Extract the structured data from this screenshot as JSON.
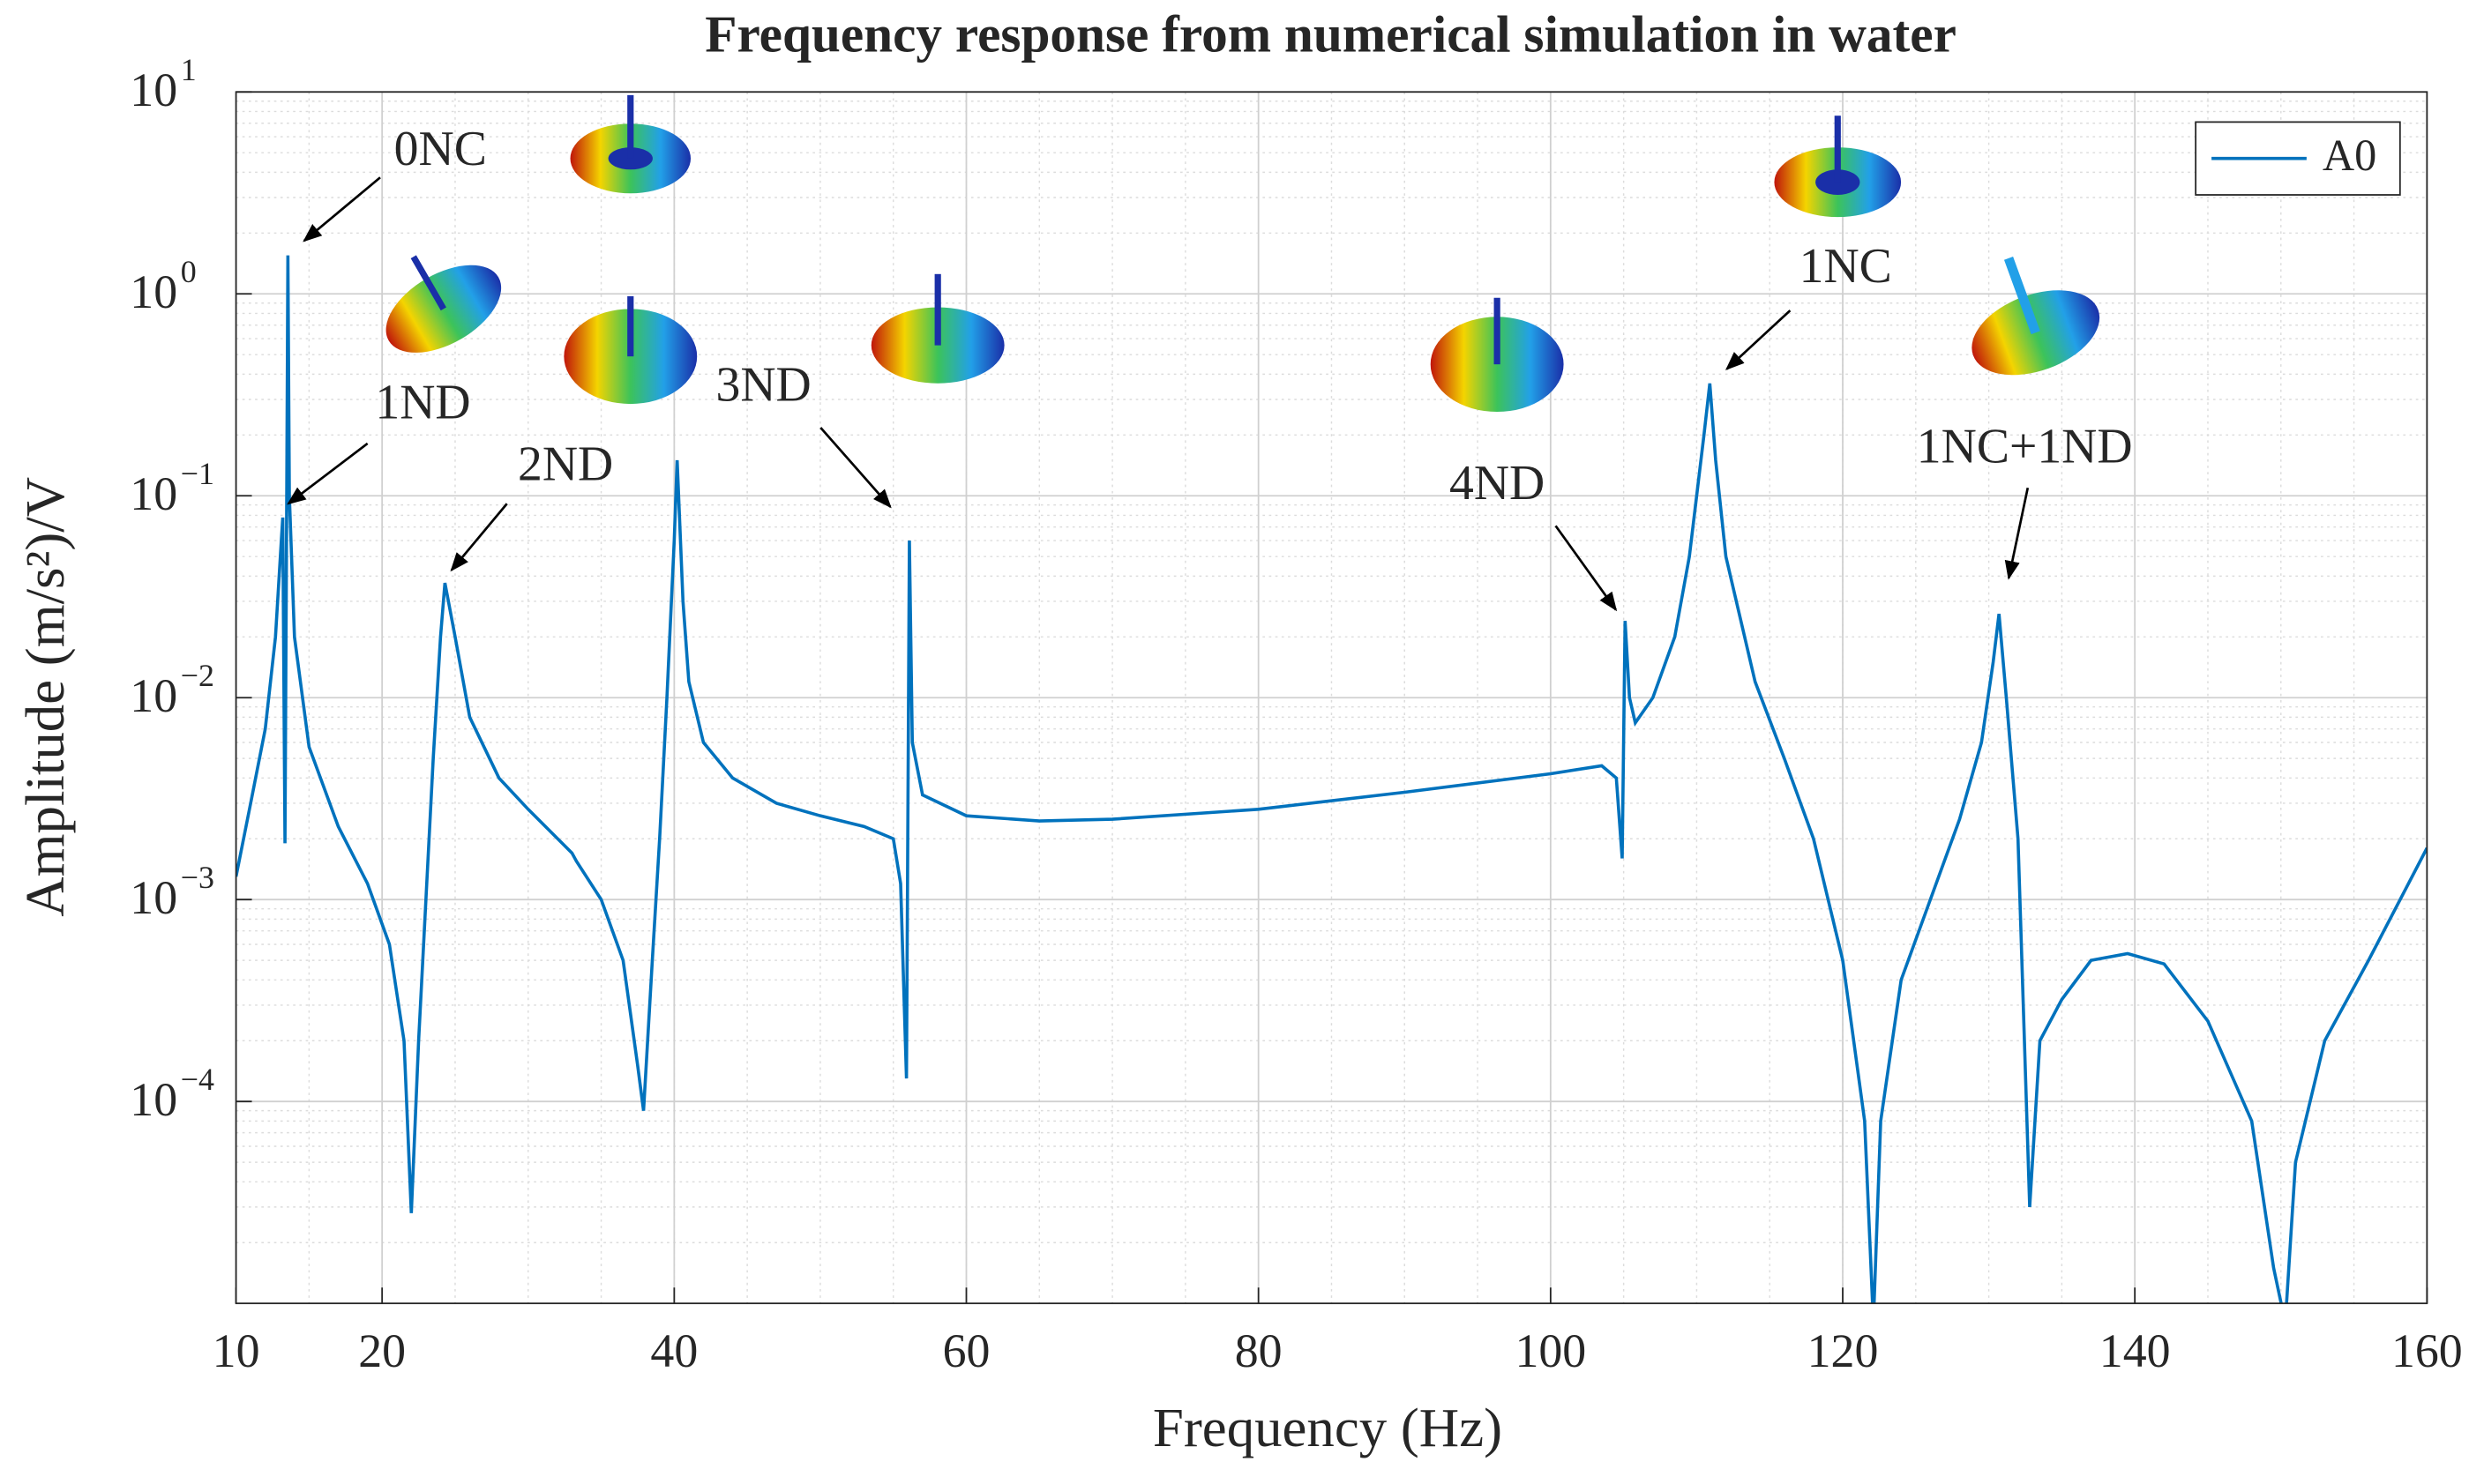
{
  "chart_data": {
    "type": "line",
    "title": "Frequency response from numerical simulation in water",
    "xlabel": "Frequency (Hz)",
    "ylabel": "Amplitude (m/s²)/V",
    "log_y": true,
    "grid": true,
    "minor_grid": true,
    "legend_position": "upper right",
    "xlim": [
      10,
      160
    ],
    "xticks": [
      10,
      20,
      40,
      60,
      80,
      100,
      120,
      140,
      160
    ],
    "ylim": [
      1e-05,
      10
    ],
    "yticks": [
      {
        "value": 10,
        "label": "10",
        "exponent": "1"
      },
      {
        "value": 1,
        "label": "10",
        "exponent": "0"
      },
      {
        "value": 0.1,
        "label": "10",
        "exponent": "−1"
      },
      {
        "value": 0.01,
        "label": "10",
        "exponent": "−2"
      },
      {
        "value": 0.001,
        "label": "10",
        "exponent": "−3"
      },
      {
        "value": 0.0001,
        "label": "10",
        "exponent": "−4"
      }
    ],
    "x": [
      10.0,
      11.0,
      12.0,
      12.7,
      13.1,
      13.2,
      13.35,
      13.45,
      13.55,
      13.65,
      14.0,
      15.0,
      17.0,
      19.0,
      20.5,
      21.5,
      22.0,
      22.5,
      23.0,
      23.5,
      24.0,
      24.3,
      25.0,
      26.0,
      28.0,
      30.0,
      33.0,
      33.3,
      35.0,
      36.5,
      37.5,
      37.9,
      38.5,
      39.0,
      39.5,
      40.0,
      40.2,
      40.6,
      41.0,
      42.0,
      44.0,
      47.0,
      50.0,
      53.0,
      55.0,
      55.5,
      55.9,
      56.1,
      56.3,
      57.0,
      60.0,
      65.0,
      70.0,
      80.0,
      90.0,
      100.0,
      103.5,
      104.5,
      104.9,
      105.1,
      105.4,
      105.8,
      107.0,
      108.5,
      109.5,
      110.5,
      110.9,
      111.3,
      112.0,
      114.0,
      116.0,
      118.0,
      120.0,
      121.5,
      122.1,
      122.6,
      124.0,
      126.0,
      128.0,
      129.5,
      130.3,
      130.7,
      131.2,
      132.0,
      132.8,
      133.5,
      135.0,
      137.0,
      139.5,
      142.0,
      145.0,
      148.0,
      149.5,
      150.3,
      151.0,
      153.0,
      156.0,
      160.0
    ],
    "series": [
      {
        "name": "A0",
        "color": "#0072bd",
        "values": [
          0.0013,
          0.003,
          0.007,
          0.02,
          0.06,
          0.078,
          0.0019,
          0.05,
          1.55,
          0.1,
          0.02,
          0.0057,
          0.0023,
          0.0012,
          0.0006,
          0.0002,
          2.8e-05,
          0.0002,
          0.001,
          0.005,
          0.02,
          0.037,
          0.02,
          0.008,
          0.004,
          0.0028,
          0.0017,
          0.00155,
          0.001,
          0.0005,
          0.00015,
          9e-05,
          0.0005,
          0.002,
          0.01,
          0.06,
          0.15,
          0.03,
          0.012,
          0.006,
          0.004,
          0.003,
          0.0026,
          0.0023,
          0.002,
          0.0012,
          0.00013,
          0.06,
          0.006,
          0.0033,
          0.0026,
          0.00245,
          0.0025,
          0.0028,
          0.0034,
          0.0042,
          0.0046,
          0.004,
          0.0016,
          0.024,
          0.01,
          0.0075,
          0.01,
          0.02,
          0.05,
          0.2,
          0.36,
          0.15,
          0.05,
          0.012,
          0.005,
          0.002,
          0.0005,
          8e-05,
          8e-06,
          8e-05,
          0.0004,
          0.001,
          0.0025,
          0.006,
          0.015,
          0.026,
          0.01,
          0.002,
          3e-05,
          0.0002,
          0.00032,
          0.0005,
          0.00054,
          0.00048,
          0.00025,
          8e-05,
          1.5e-05,
          8e-06,
          5e-05,
          0.0002,
          0.0005,
          0.0018
        ]
      }
    ],
    "annotations": [
      "0NC",
      "1ND",
      "2ND",
      "3ND",
      "4ND",
      "1NC",
      "1NC+1ND"
    ]
  }
}
